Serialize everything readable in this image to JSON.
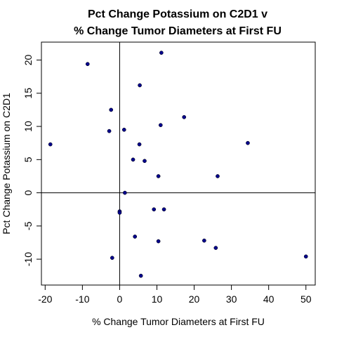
{
  "chart_data": {
    "type": "scatter",
    "title": [
      "Pct Change Potassium on C2D1 v",
      "% Change Tumor Diameters at First FU"
    ],
    "xlabel": "% Change Tumor Diameters at First FU",
    "ylabel": "Pct Change Potassium on C2D1",
    "xlim": [
      -21,
      52.5
    ],
    "ylim": [
      -13.9,
      22.7
    ],
    "x_ticks": [
      -20,
      -10,
      0,
      10,
      20,
      30,
      40,
      50
    ],
    "y_ticks": [
      -10,
      -5,
      0,
      5,
      10,
      15,
      20
    ],
    "reference_lines": {
      "vertical_x": 0,
      "horizontal_y": 0
    },
    "grid": false,
    "point_color": "#00008B",
    "points": [
      {
        "x": -18.6,
        "y": 7.3
      },
      {
        "x": -8.6,
        "y": 19.4
      },
      {
        "x": -2.3,
        "y": 12.5
      },
      {
        "x": -2.8,
        "y": 9.3
      },
      {
        "x": -2.0,
        "y": -9.8
      },
      {
        "x": 0.0,
        "y": -2.8
      },
      {
        "x": 0.0,
        "y": -3.0
      },
      {
        "x": 1.2,
        "y": 9.5
      },
      {
        "x": 1.4,
        "y": 0.0
      },
      {
        "x": 3.6,
        "y": 5.0
      },
      {
        "x": 4.1,
        "y": -6.6
      },
      {
        "x": 5.3,
        "y": 7.3
      },
      {
        "x": 5.4,
        "y": 16.2
      },
      {
        "x": 5.7,
        "y": -12.5
      },
      {
        "x": 6.7,
        "y": 4.8
      },
      {
        "x": 9.2,
        "y": -2.5
      },
      {
        "x": 10.4,
        "y": 2.5
      },
      {
        "x": 10.4,
        "y": -7.3
      },
      {
        "x": 11.0,
        "y": 10.2
      },
      {
        "x": 11.2,
        "y": 21.1
      },
      {
        "x": 11.9,
        "y": -2.5
      },
      {
        "x": 17.3,
        "y": 11.4
      },
      {
        "x": 22.7,
        "y": -7.2
      },
      {
        "x": 25.8,
        "y": -8.3
      },
      {
        "x": 26.3,
        "y": 2.5
      },
      {
        "x": 34.4,
        "y": 7.5
      },
      {
        "x": 50.0,
        "y": -9.6
      }
    ]
  }
}
